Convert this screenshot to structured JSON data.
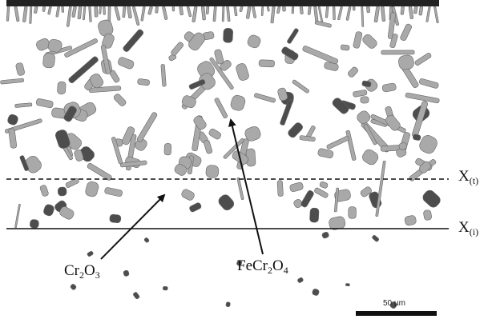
{
  "figure": {
    "labels": {
      "cr2o3": {
        "base1": "Cr",
        "sub1": "2",
        "base2": "O",
        "sub2": "3"
      },
      "fecr2o4": {
        "base1": "FeCr",
        "sub1": "2",
        "base2": "O",
        "sub2": "4"
      },
      "x_t": {
        "base": "X",
        "sub": "(t)"
      },
      "x_i": {
        "base": "X",
        "sub": "(i)"
      }
    },
    "scale_bar": {
      "label": "50 µm"
    },
    "colors": {
      "background": "#ffffff",
      "top_surface": "#222222",
      "precipitate_light": "#a9a9a9",
      "precipitate_dark": "#4d4d4d",
      "lines": "#111111"
    }
  }
}
